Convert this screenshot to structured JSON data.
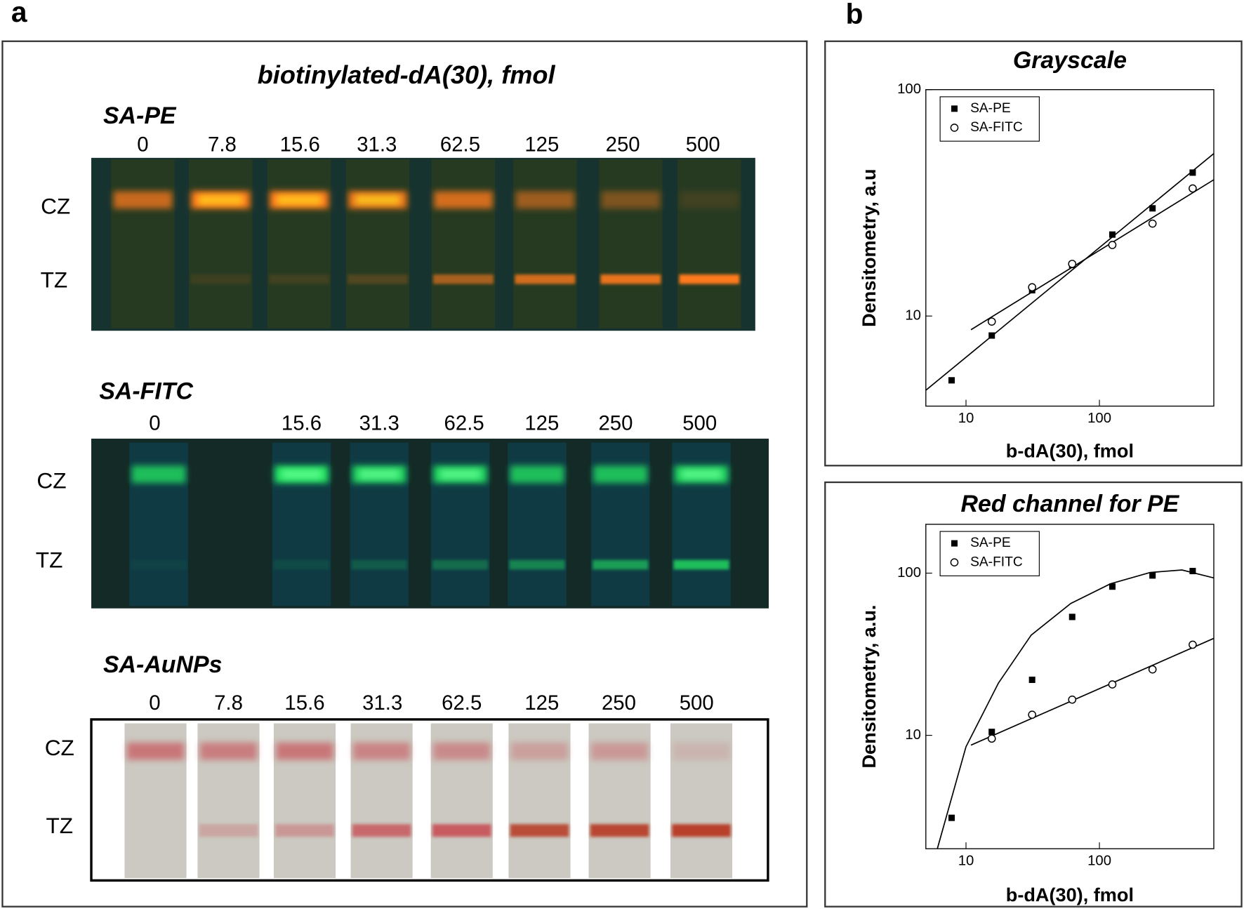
{
  "panel_a": {
    "label": "a",
    "title": "biotinylated-dA(30), fmol",
    "sections": [
      {
        "name": "SA-PE",
        "lane_labels": [
          "0",
          "7.8",
          "15.6",
          "31.3",
          "62.5",
          "125",
          "250",
          "500"
        ],
        "zones": [
          "CZ",
          "TZ"
        ]
      },
      {
        "name": "SA-FITC",
        "lane_labels": [
          "0",
          "15.6",
          "31.3",
          "62.5",
          "125",
          "250",
          "500"
        ],
        "zones": [
          "CZ",
          "TZ"
        ]
      },
      {
        "name": "SA-AuNPs",
        "lane_labels": [
          "0",
          "7.8",
          "15.6",
          "31.3",
          "62.5",
          "125",
          "250",
          "500"
        ],
        "zones": [
          "CZ",
          "TZ"
        ]
      }
    ]
  },
  "panel_b": {
    "label": "b"
  },
  "chart_data": [
    {
      "type": "scatter",
      "title": "Grayscale",
      "x_label": "b-dA(30), fmol",
      "y_label": "Densitometry, a.u",
      "log_x": true,
      "log_y": true,
      "legend": "upper left",
      "x": [
        7.8,
        15.6,
        31.3,
        62.5,
        125,
        250,
        500
      ],
      "series": [
        {
          "name": "SA-PE",
          "color": "#000000",
          "marker": "square",
          "values": [
            5.2,
            8.2,
            13.0,
            16.8,
            22.9,
            29.9,
            43
          ]
        },
        {
          "name": "SA-FITC",
          "color": "#000000",
          "marker": "circle",
          "values": [
            null,
            9.45,
            13.4,
            17.0,
            20.6,
            25.6,
            36.6
          ]
        }
      ],
      "fits": [
        {
          "x": [
            5,
            720
          ],
          "values": [
            4.7,
            52.2
          ]
        },
        {
          "x": [
            10.9,
            720
          ],
          "values": [
            8.7,
            40
          ]
        }
      ],
      "xlim": [
        5,
        720
      ],
      "ylim": [
        4,
        100
      ],
      "xticks": [
        10,
        100
      ],
      "yticks": [
        10,
        100
      ]
    },
    {
      "type": "scatter",
      "title": "Red channel for PE",
      "x_label": "b-dA(30), fmol",
      "y_label": "Densitometry, a.u.",
      "log_x": true,
      "log_y": true,
      "legend": "upper left",
      "x": [
        7.8,
        15.6,
        31.3,
        62.5,
        125,
        250,
        500
      ],
      "series": [
        {
          "name": "SA-PE",
          "color": "#000000",
          "marker": "square",
          "values": [
            3.1,
            10.5,
            22,
            53.7,
            82.6,
            96.7,
            103
          ]
        },
        {
          "name": "SA-FITC",
          "color": "#000000",
          "marker": "circle",
          "values": [
            null,
            9.55,
            13.4,
            16.6,
            20.6,
            25.5,
            36.2
          ]
        }
      ],
      "fits": [
        {
          "x": [
            6.1,
            10,
            17.5,
            30.8,
            61,
            121,
            240,
            416,
            720
          ],
          "values": [
            2,
            8.5,
            21,
            41.5,
            65,
            86,
            101,
            104.6,
            93.4
          ]
        },
        {
          "x": [
            10.9,
            720
          ],
          "values": [
            8.7,
            39.6
          ]
        }
      ],
      "xlim": [
        5,
        720
      ],
      "ylim": [
        2,
        200
      ],
      "xticks": [
        10,
        100
      ],
      "yticks": [
        10,
        100
      ]
    }
  ]
}
